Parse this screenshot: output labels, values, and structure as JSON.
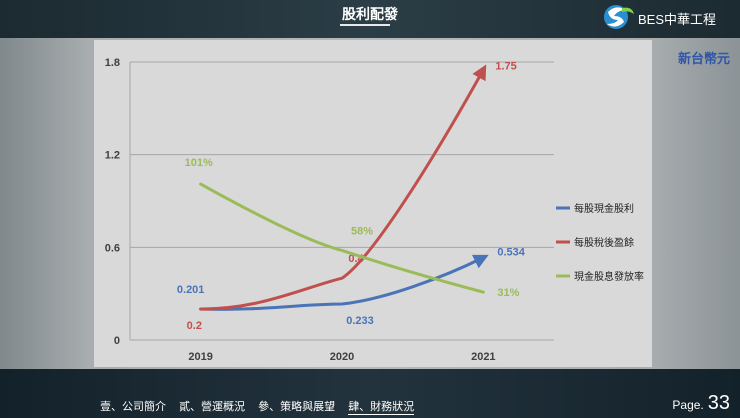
{
  "header": {
    "title": "股利配發",
    "logo_text": "BES中華工程"
  },
  "unit_label": "新台幣元",
  "colors": {
    "cash": "#4a74b8",
    "eps": "#c0504d",
    "payout": "#9bbb59"
  },
  "chart_data": {
    "type": "line",
    "categories": [
      "2019",
      "2020",
      "2021"
    ],
    "yticks": [
      "0",
      "0.6",
      "1.2",
      "1.8"
    ],
    "ylim": [
      0,
      1.8
    ],
    "grid": true,
    "legend_position": "right",
    "series": [
      {
        "name": "每股現金股利",
        "values": [
          0.201,
          0.233,
          0.534
        ],
        "labels": [
          "0.201",
          "0.233",
          "0.534"
        ]
      },
      {
        "name": "每股稅後盈餘",
        "values": [
          0.2,
          0.4,
          1.75
        ],
        "labels": [
          "0.2",
          "0.4",
          "1.75"
        ]
      },
      {
        "name": "現金股息發放率",
        "values": [
          101,
          58,
          31
        ],
        "labels": [
          "101%",
          "58%",
          "31%"
        ]
      }
    ]
  },
  "footer": {
    "nav": [
      "壹、公司簡介",
      "貳、營運概況",
      "參、策略與展望",
      "肆、財務狀況"
    ],
    "page_label": "Page.",
    "page_number": "33"
  }
}
